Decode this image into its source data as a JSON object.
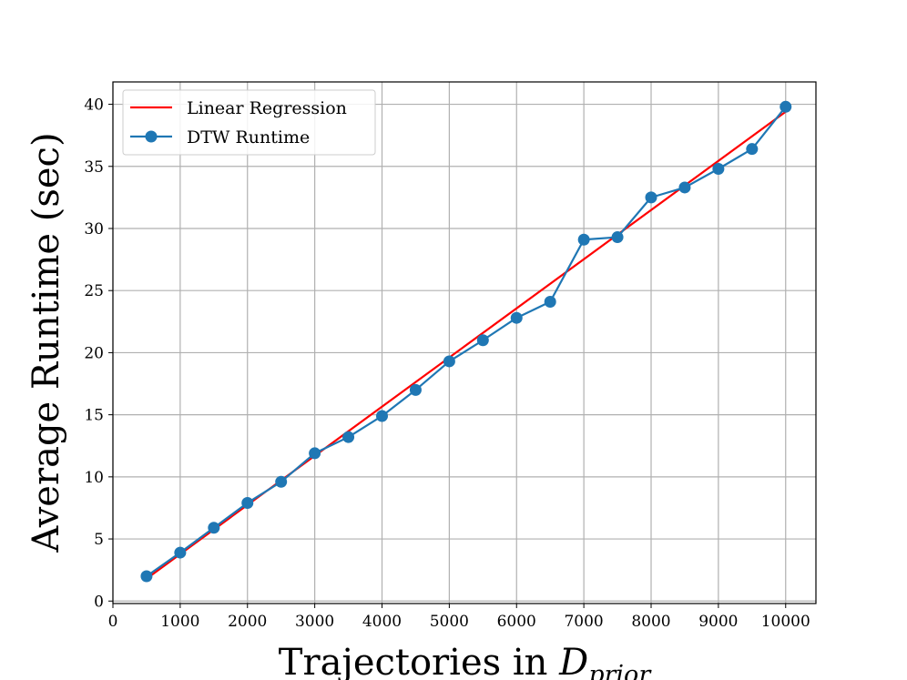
{
  "chart_data": {
    "type": "line",
    "title": "",
    "xlabel": "Trajectories in ",
    "xlabel_symbol": "D",
    "xlabel_subscript": "prior",
    "ylabel": "Average Runtime (sec)",
    "xlim": [
      0,
      10450
    ],
    "ylim": [
      -0.2,
      41.8
    ],
    "grid": true,
    "legend_position": "upper-left",
    "x_ticks": [
      0,
      1000,
      2000,
      3000,
      4000,
      5000,
      6000,
      7000,
      8000,
      9000,
      10000
    ],
    "y_ticks": [
      0,
      5,
      10,
      15,
      20,
      25,
      30,
      35,
      40
    ],
    "series": [
      {
        "name": "Linear Regression",
        "color": "#ff0000",
        "marker": "none",
        "x": [
          500,
          10000
        ],
        "y": [
          1.8,
          39.4
        ]
      },
      {
        "name": "DTW Runtime",
        "color": "#1f77b4",
        "marker": "circle",
        "x": [
          500,
          1000,
          1500,
          2000,
          2500,
          3000,
          3500,
          4000,
          4500,
          5000,
          5500,
          6000,
          6500,
          7000,
          7500,
          8000,
          8500,
          9000,
          9500,
          10000
        ],
        "y": [
          2.0,
          3.9,
          5.9,
          7.9,
          9.6,
          11.9,
          13.2,
          14.9,
          17.0,
          19.3,
          21.0,
          22.8,
          24.1,
          29.1,
          29.3,
          32.5,
          33.3,
          34.8,
          36.4,
          39.8
        ]
      }
    ]
  }
}
